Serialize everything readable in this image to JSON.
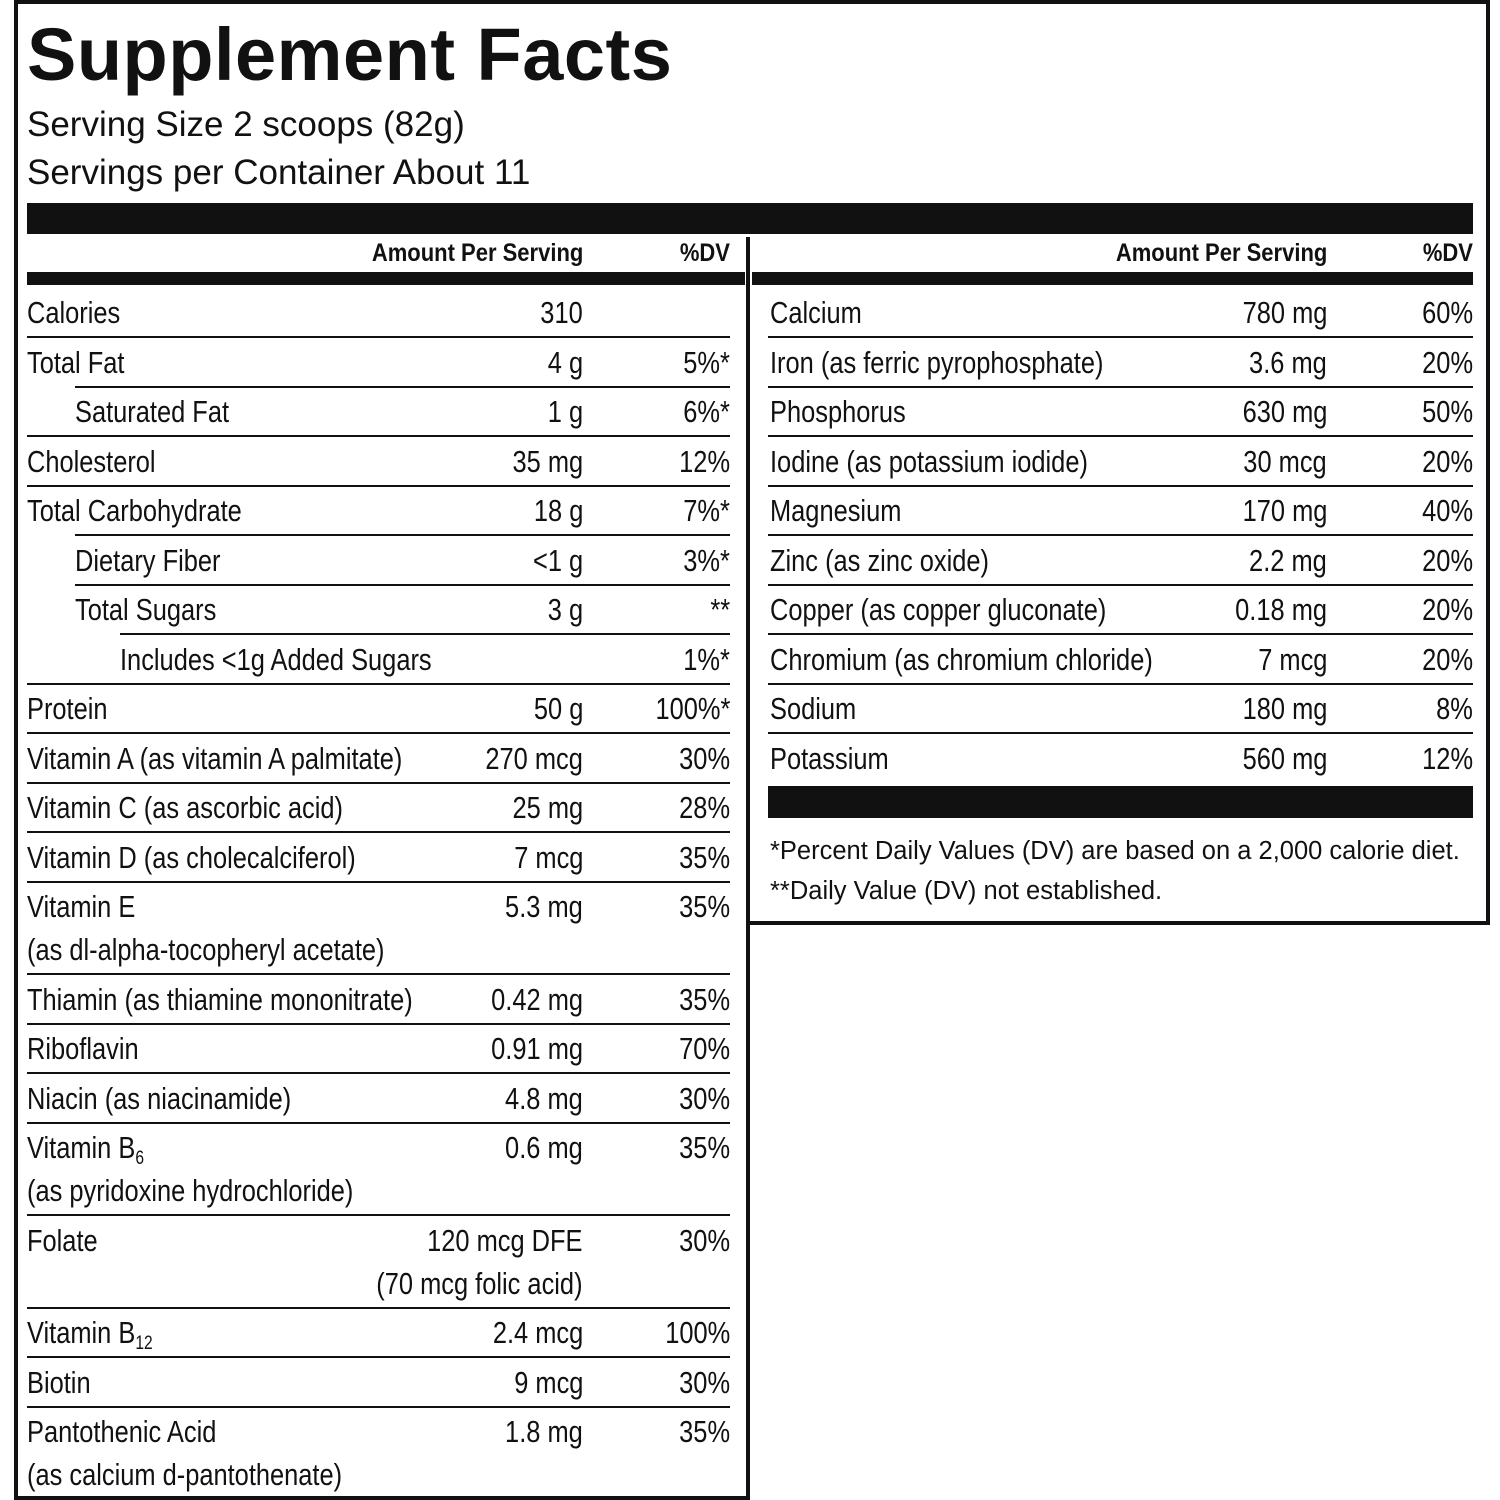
{
  "title": "Supplement Facts",
  "serving_size": "Serving Size 2 scoops (82g)",
  "servings_per_container": "Servings per Container About 11",
  "left": {
    "headers": [
      "Amount Per Serving",
      "%DV"
    ],
    "rows": [
      {
        "name": "Calories",
        "amount": "310"
      },
      {
        "name": "Total Fat",
        "amount": "4 g",
        "dv": "5%*"
      },
      {
        "name": "Saturated Fat",
        "amount": "1 g",
        "dv": "6%*"
      },
      {
        "name": "Cholesterol",
        "amount": "35 mg",
        "dv": "12%"
      },
      {
        "name": "Total Carbohydrate",
        "amount": "18 g",
        "dv": "7%*"
      },
      {
        "name": "Dietary Fiber",
        "amount": "<1 g",
        "dv": "3%*"
      },
      {
        "name": "Total Sugars",
        "amount": "3 g",
        "dv": "**"
      },
      {
        "name": "Includes <1g Added Sugars",
        "dv": "1%*"
      },
      {
        "name": "Protein",
        "amount": "50 g",
        "dv": "100%*"
      },
      {
        "name": "Vitamin A (as vitamin A palmitate)",
        "amount": "270 mcg",
        "dv": "30%"
      },
      {
        "name": "Vitamin C (as ascorbic acid)",
        "amount": "25 mg",
        "dv": "28%"
      },
      {
        "name": "Vitamin D (as cholecalciferol)",
        "amount": "7 mcg",
        "dv": "35%"
      },
      {
        "name": "Vitamin E",
        "note": "(as dl-alpha-tocopheryl acetate)",
        "amount": "5.3 mg",
        "dv": "35%"
      },
      {
        "name": "Thiamin (as thiamine mononitrate)",
        "amount": "0.42 mg",
        "dv": "35%"
      },
      {
        "name": "Riboflavin",
        "amount": "0.91 mg",
        "dv": "70%"
      },
      {
        "name": "Niacin (as niacinamide)",
        "amount": "4.8 mg",
        "dv": "30%"
      },
      {
        "name": "Vitamin B",
        "subscript": "6",
        "note": "(as pyridoxine hydrochloride)",
        "amount": "0.6 mg",
        "dv": "35%"
      },
      {
        "name": "Folate",
        "amount": "120 mcg DFE",
        "amount_note": "(70 mcg folic acid)",
        "dv": "30%"
      },
      {
        "name": "Vitamin B",
        "subscript": "12",
        "amount": "2.4 mcg",
        "dv": "100%"
      },
      {
        "name": "Biotin",
        "amount": "9 mcg",
        "dv": "30%"
      },
      {
        "name": "Pantothenic Acid",
        "note": "(as calcium d-pantothenate)",
        "amount": "1.8 mg",
        "dv": "35%"
      }
    ]
  },
  "right": {
    "headers": [
      "Amount Per Serving",
      "%DV"
    ],
    "rows": [
      {
        "name": "Calcium",
        "amount": "780 mg",
        "dv": "60%"
      },
      {
        "name": "Iron (as ferric pyrophosphate)",
        "amount": "3.6 mg",
        "dv": "20%"
      },
      {
        "name": "Phosphorus",
        "amount": "630 mg",
        "dv": "50%"
      },
      {
        "name": "Iodine (as potassium iodide)",
        "amount": "30 mcg",
        "dv": "20%"
      },
      {
        "name": "Magnesium",
        "amount": "170 mg",
        "dv": "40%"
      },
      {
        "name": "Zinc (as zinc oxide)",
        "amount": "2.2 mg",
        "dv": "20%"
      },
      {
        "name": "Copper (as copper gluconate)",
        "amount": "0.18 mg",
        "dv": "20%"
      },
      {
        "name": "Chromium (as chromium chloride)",
        "amount": "7 mcg",
        "dv": "20%"
      },
      {
        "name": "Sodium",
        "amount": "180 mg",
        "dv": "8%"
      },
      {
        "name": "Potassium",
        "amount": "560 mg",
        "dv": "12%"
      }
    ]
  },
  "footnotes": [
    "*Percent Daily Values (DV) are based on a 2,000 calorie diet.",
    "**Daily Value (DV) not established."
  ]
}
